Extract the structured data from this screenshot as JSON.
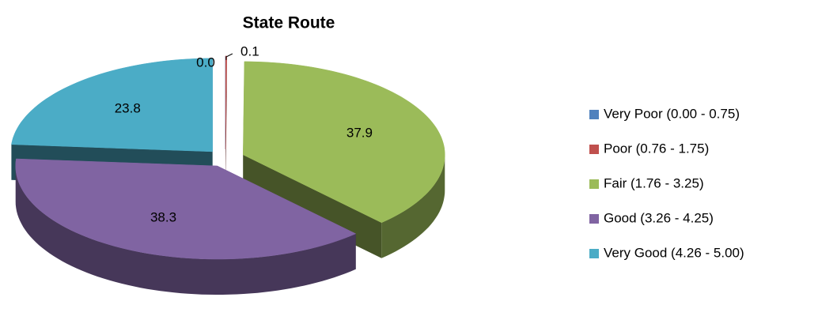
{
  "chart_data": {
    "type": "pie",
    "title": "State Route",
    "categories": [
      "Very Poor (0.00 - 0.75)",
      "Poor (0.76 - 1.75)",
      "Fair (1.76 - 3.25)",
      "Good (3.26 - 4.25)",
      "Very Good (4.26 - 5.00)"
    ],
    "values": [
      0,
      0.1,
      37.9,
      38.3,
      23.8
    ],
    "value_labels": [
      "0.0",
      "0.1",
      "37.9",
      "38.3",
      "23.8"
    ],
    "colors": [
      "#4f81bd",
      "#c0504d",
      "#9bbb59",
      "#8064a2",
      "#4bacc6"
    ],
    "legend": "right"
  }
}
